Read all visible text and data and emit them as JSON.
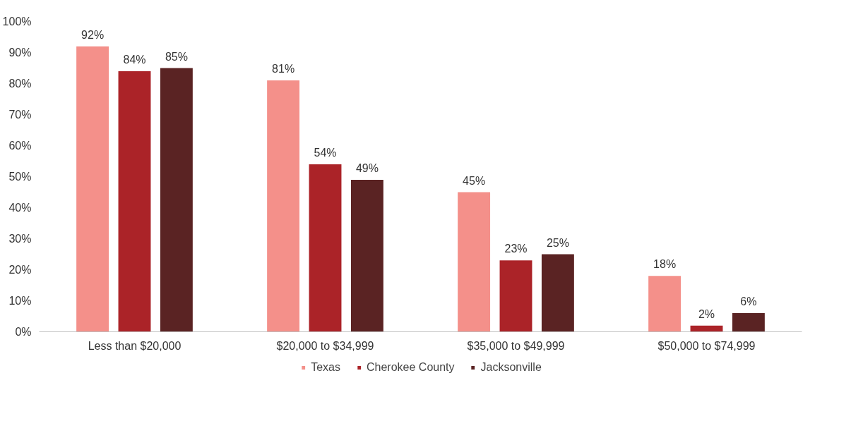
{
  "chart_data": {
    "type": "bar",
    "categories": [
      "Less than $20,000",
      "$20,000 to $34,999",
      "$35,000 to $49,999",
      "$50,000 to $74,999"
    ],
    "series": [
      {
        "name": "Texas",
        "color": "#f4908a",
        "values": [
          92,
          81,
          45,
          18
        ]
      },
      {
        "name": "Cherokee County",
        "color": "#ab2328",
        "values": [
          84,
          54,
          23,
          2
        ]
      },
      {
        "name": "Jacksonville",
        "color": "#5a2323",
        "values": [
          85,
          49,
          25,
          6
        ]
      }
    ],
    "ylim": [
      0,
      100
    ],
    "yticks": [
      {
        "value": 0,
        "label": "0%"
      },
      {
        "value": 10,
        "label": "10%"
      },
      {
        "value": 20,
        "label": "20%"
      },
      {
        "value": 30,
        "label": "30%"
      },
      {
        "value": 40,
        "label": "40%"
      },
      {
        "value": 50,
        "label": "50%"
      },
      {
        "value": 60,
        "label": "60%"
      },
      {
        "value": 70,
        "label": "70%"
      },
      {
        "value": 80,
        "label": "80%"
      },
      {
        "value": 90,
        "label": "90%"
      },
      {
        "value": 100,
        "label": "100%"
      }
    ],
    "value_labels": [
      [
        "92%",
        "81%",
        "45%",
        "18%"
      ],
      [
        "84%",
        "54%",
        "23%",
        "2%"
      ],
      [
        "85%",
        "49%",
        "25%",
        "6%"
      ]
    ],
    "grid": false,
    "legend": "bottom"
  }
}
